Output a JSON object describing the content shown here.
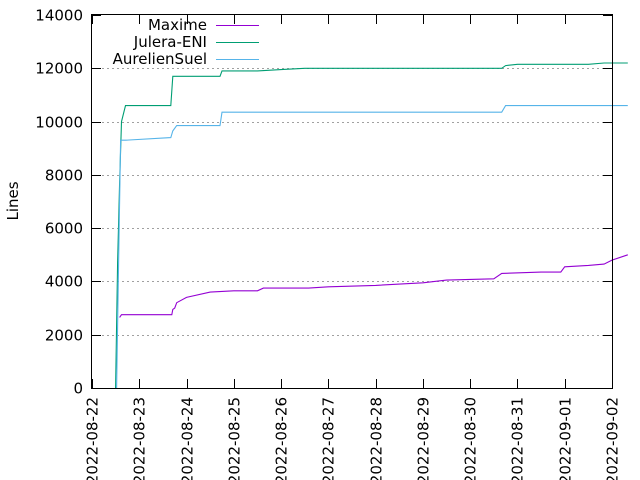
{
  "chart_data": {
    "type": "line",
    "ylabel": "Lines",
    "ylim": [
      0,
      14000
    ],
    "xlim": [
      "2022-08-22",
      "2022-09-02"
    ],
    "y_ticks": [
      "0",
      "2000",
      "4000",
      "6000",
      "8000",
      "10000",
      "12000",
      "14000"
    ],
    "x_ticks": [
      "2022-08-22",
      "2022-08-23",
      "2022-08-24",
      "2022-08-25",
      "2022-08-26",
      "2022-08-27",
      "2022-08-28",
      "2022-08-29",
      "2022-08-30",
      "2022-08-31",
      "2022-09-01",
      "2022-09-02"
    ],
    "grid": "horizontal dotted",
    "legend_position": "top-left",
    "series": [
      {
        "name": "Maxime",
        "color": "#9400d3",
        "points": [
          [
            "2022-08-22 14:00",
            2650
          ],
          [
            "2022-08-22 15:00",
            2750
          ],
          [
            "2022-08-23 16:30",
            2750
          ],
          [
            "2022-08-23 17:00",
            2950
          ],
          [
            "2022-08-23 18:00",
            3000
          ],
          [
            "2022-08-23 19:00",
            3200
          ],
          [
            "2022-08-24 00:00",
            3400
          ],
          [
            "2022-08-24 12:00",
            3600
          ],
          [
            "2022-08-25 00:00",
            3650
          ],
          [
            "2022-08-25 12:00",
            3650
          ],
          [
            "2022-08-25 15:00",
            3750
          ],
          [
            "2022-08-26 14:00",
            3750
          ],
          [
            "2022-08-27 00:00",
            3800
          ],
          [
            "2022-08-28 00:00",
            3850
          ],
          [
            "2022-08-29 00:00",
            3950
          ],
          [
            "2022-08-29 12:00",
            4050
          ],
          [
            "2022-08-30 12:00",
            4100
          ],
          [
            "2022-08-30 16:00",
            4300
          ],
          [
            "2022-08-31 12:00",
            4350
          ],
          [
            "2022-08-31 22:00",
            4350
          ],
          [
            "2022-09-01 00:00",
            4550
          ],
          [
            "2022-09-01 12:00",
            4600
          ],
          [
            "2022-09-01 20:00",
            4650
          ],
          [
            "2022-09-02 00:00",
            4800
          ],
          [
            "2022-09-02 08:00",
            5000
          ]
        ]
      },
      {
        "name": "Julera-ENI",
        "color": "#009e73",
        "points": [
          [
            "2022-08-22 12:00",
            0
          ],
          [
            "2022-08-22 13:00",
            4700
          ],
          [
            "2022-08-22 14:00",
            7700
          ],
          [
            "2022-08-22 15:00",
            10000
          ],
          [
            "2022-08-22 17:00",
            10600
          ],
          [
            "2022-08-23 16:00",
            10600
          ],
          [
            "2022-08-23 17:00",
            11700
          ],
          [
            "2022-08-24 17:00",
            11700
          ],
          [
            "2022-08-24 18:00",
            11900
          ],
          [
            "2022-08-25 12:00",
            11900
          ],
          [
            "2022-08-26 00:00",
            11950
          ],
          [
            "2022-08-26 12:00",
            12000
          ],
          [
            "2022-08-30 16:00",
            12000
          ],
          [
            "2022-08-30 18:00",
            12100
          ],
          [
            "2022-08-31 00:00",
            12150
          ],
          [
            "2022-09-01 12:00",
            12150
          ],
          [
            "2022-09-01 20:00",
            12200
          ],
          [
            "2022-09-02 08:00",
            12200
          ]
        ]
      },
      {
        "name": "AurelienSuel",
        "color": "#56b4e9",
        "points": [
          [
            "2022-08-22 12:30",
            0
          ],
          [
            "2022-08-22 13:30",
            4700
          ],
          [
            "2022-08-22 14:30",
            9300
          ],
          [
            "2022-08-22 17:00",
            9300
          ],
          [
            "2022-08-23 16:00",
            9400
          ],
          [
            "2022-08-23 17:00",
            9650
          ],
          [
            "2022-08-23 19:00",
            9850
          ],
          [
            "2022-08-24 17:00",
            9850
          ],
          [
            "2022-08-24 18:00",
            10350
          ],
          [
            "2022-08-30 16:00",
            10350
          ],
          [
            "2022-08-30 18:00",
            10600
          ],
          [
            "2022-09-02 08:00",
            10600
          ]
        ]
      }
    ]
  }
}
